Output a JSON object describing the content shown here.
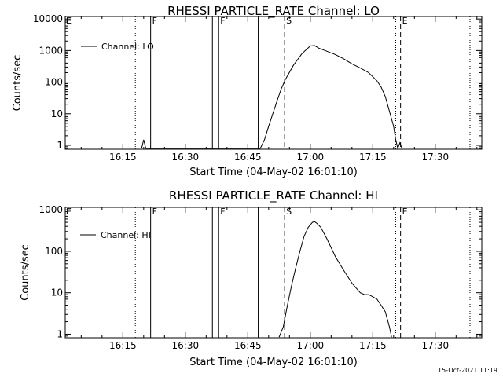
{
  "footer_date": "15-Oct-2021 11:19",
  "chart_data": [
    {
      "type": "line",
      "title": "RHESSI PARTICLE_RATE Channel: LO",
      "xlabel": "Start Time (04-May-02 16:01:10)",
      "ylabel": "Counts/sec",
      "yscale": "log",
      "xlim": [
        "16:01:10",
        "17:41:10"
      ],
      "ylim": [
        0.75,
        12000
      ],
      "xticks": [
        "16:15",
        "16:30",
        "16:45",
        "17:00",
        "17:15",
        "17:30"
      ],
      "yticks": [
        {
          "value": 1,
          "label": "1"
        },
        {
          "value": 10,
          "label": "10"
        },
        {
          "value": 100,
          "label": "100"
        },
        {
          "value": 1000,
          "label": "1000"
        },
        {
          "value": 10000,
          "label": "10000"
        }
      ],
      "legend": {
        "entries": [
          "Channel: LO"
        ],
        "location": "upper-left"
      },
      "series": [
        {
          "name": "Channel: LO",
          "times": [
            "16:19:30",
            "16:20:00",
            "16:20:30",
            "16:48:00",
            "16:49:00",
            "16:50:00",
            "16:51:00",
            "16:52:00",
            "16:53:00",
            "16:54:00",
            "16:56:00",
            "16:58:00",
            "17:00:00",
            "17:01:00",
            "17:02:00",
            "17:04:00",
            "17:06:00",
            "17:08:00",
            "17:10:00",
            "17:12:00",
            "17:14:00",
            "17:16:00",
            "17:17:00",
            "17:18:00",
            "17:19:00",
            "17:20:00",
            "17:20:30",
            "17:21:00",
            "17:21:30",
            "17:22:00"
          ],
          "values": [
            0.8,
            1.5,
            0.8,
            0.8,
            1.5,
            4,
            10,
            25,
            60,
            120,
            350,
            800,
            1400,
            1450,
            1200,
            950,
            750,
            550,
            380,
            280,
            200,
            110,
            70,
            35,
            12,
            4,
            1.5,
            0.8,
            1.2,
            0.8
          ]
        }
      ],
      "vlines": [
        {
          "time": "16:18:00",
          "style": "dotted",
          "flag": ""
        },
        {
          "time": "16:21:40",
          "style": "solid",
          "flag": "F"
        },
        {
          "time": "16:36:30",
          "style": "solid",
          "flag": ""
        },
        {
          "time": "16:38:00",
          "style": "solid",
          "flag": "F"
        },
        {
          "time": "16:47:30",
          "style": "solid",
          "flag": ""
        },
        {
          "time": "16:53:50",
          "style": "dashed",
          "flag": "S"
        },
        {
          "time": "17:20:30",
          "style": "dotted",
          "flag": ""
        },
        {
          "time": "17:21:40",
          "style": "dashed",
          "flag": "E"
        },
        {
          "time": "17:38:20",
          "style": "dotted",
          "flag": ""
        }
      ],
      "corner_flag": "E"
    },
    {
      "type": "line",
      "title": "RHESSI PARTICLE_RATE Channel: HI",
      "xlabel": "Start Time (04-May-02 16:01:10)",
      "ylabel": "Counts/sec",
      "yscale": "log",
      "xlim": [
        "16:01:10",
        "17:41:10"
      ],
      "ylim": [
        0.82,
        1150
      ],
      "xticks": [
        "16:15",
        "16:30",
        "16:45",
        "17:00",
        "17:15",
        "17:30"
      ],
      "yticks": [
        {
          "value": 1,
          "label": "1"
        },
        {
          "value": 10,
          "label": "10"
        },
        {
          "value": 100,
          "label": "100"
        },
        {
          "value": 1000,
          "label": "1000"
        }
      ],
      "legend": {
        "entries": [
          "Channel: HI"
        ],
        "location": "upper-left"
      },
      "series": [
        {
          "name": "Channel: HI",
          "times": [
            "16:52:30",
            "16:53:30",
            "16:54:30",
            "16:55:30",
            "16:56:30",
            "16:57:30",
            "16:58:30",
            "16:59:30",
            "17:00:30",
            "17:01:00",
            "17:01:30",
            "17:02:30",
            "17:04:00",
            "17:06:00",
            "17:08:00",
            "17:10:00",
            "17:11:00",
            "17:12:00",
            "17:13:00",
            "17:14:00",
            "17:15:00",
            "17:16:00",
            "17:17:00",
            "17:18:00",
            "17:19:00",
            "17:19:30"
          ],
          "values": [
            0.85,
            1.5,
            5,
            15,
            40,
            100,
            230,
            380,
            500,
            520,
            480,
            380,
            200,
            75,
            35,
            17,
            13,
            10,
            9,
            9,
            8,
            7,
            5,
            3.5,
            1.5,
            0.85
          ]
        }
      ],
      "vlines": [
        {
          "time": "16:18:00",
          "style": "dotted",
          "flag": ""
        },
        {
          "time": "16:21:40",
          "style": "solid",
          "flag": "F"
        },
        {
          "time": "16:36:30",
          "style": "solid",
          "flag": ""
        },
        {
          "time": "16:38:00",
          "style": "solid",
          "flag": "F"
        },
        {
          "time": "16:47:30",
          "style": "solid",
          "flag": ""
        },
        {
          "time": "16:53:50",
          "style": "dashed",
          "flag": "S"
        },
        {
          "time": "17:20:30",
          "style": "dotted",
          "flag": ""
        },
        {
          "time": "17:21:40",
          "style": "dashed",
          "flag": "E"
        },
        {
          "time": "17:38:20",
          "style": "dotted",
          "flag": ""
        }
      ],
      "corner_flag": "E"
    }
  ]
}
